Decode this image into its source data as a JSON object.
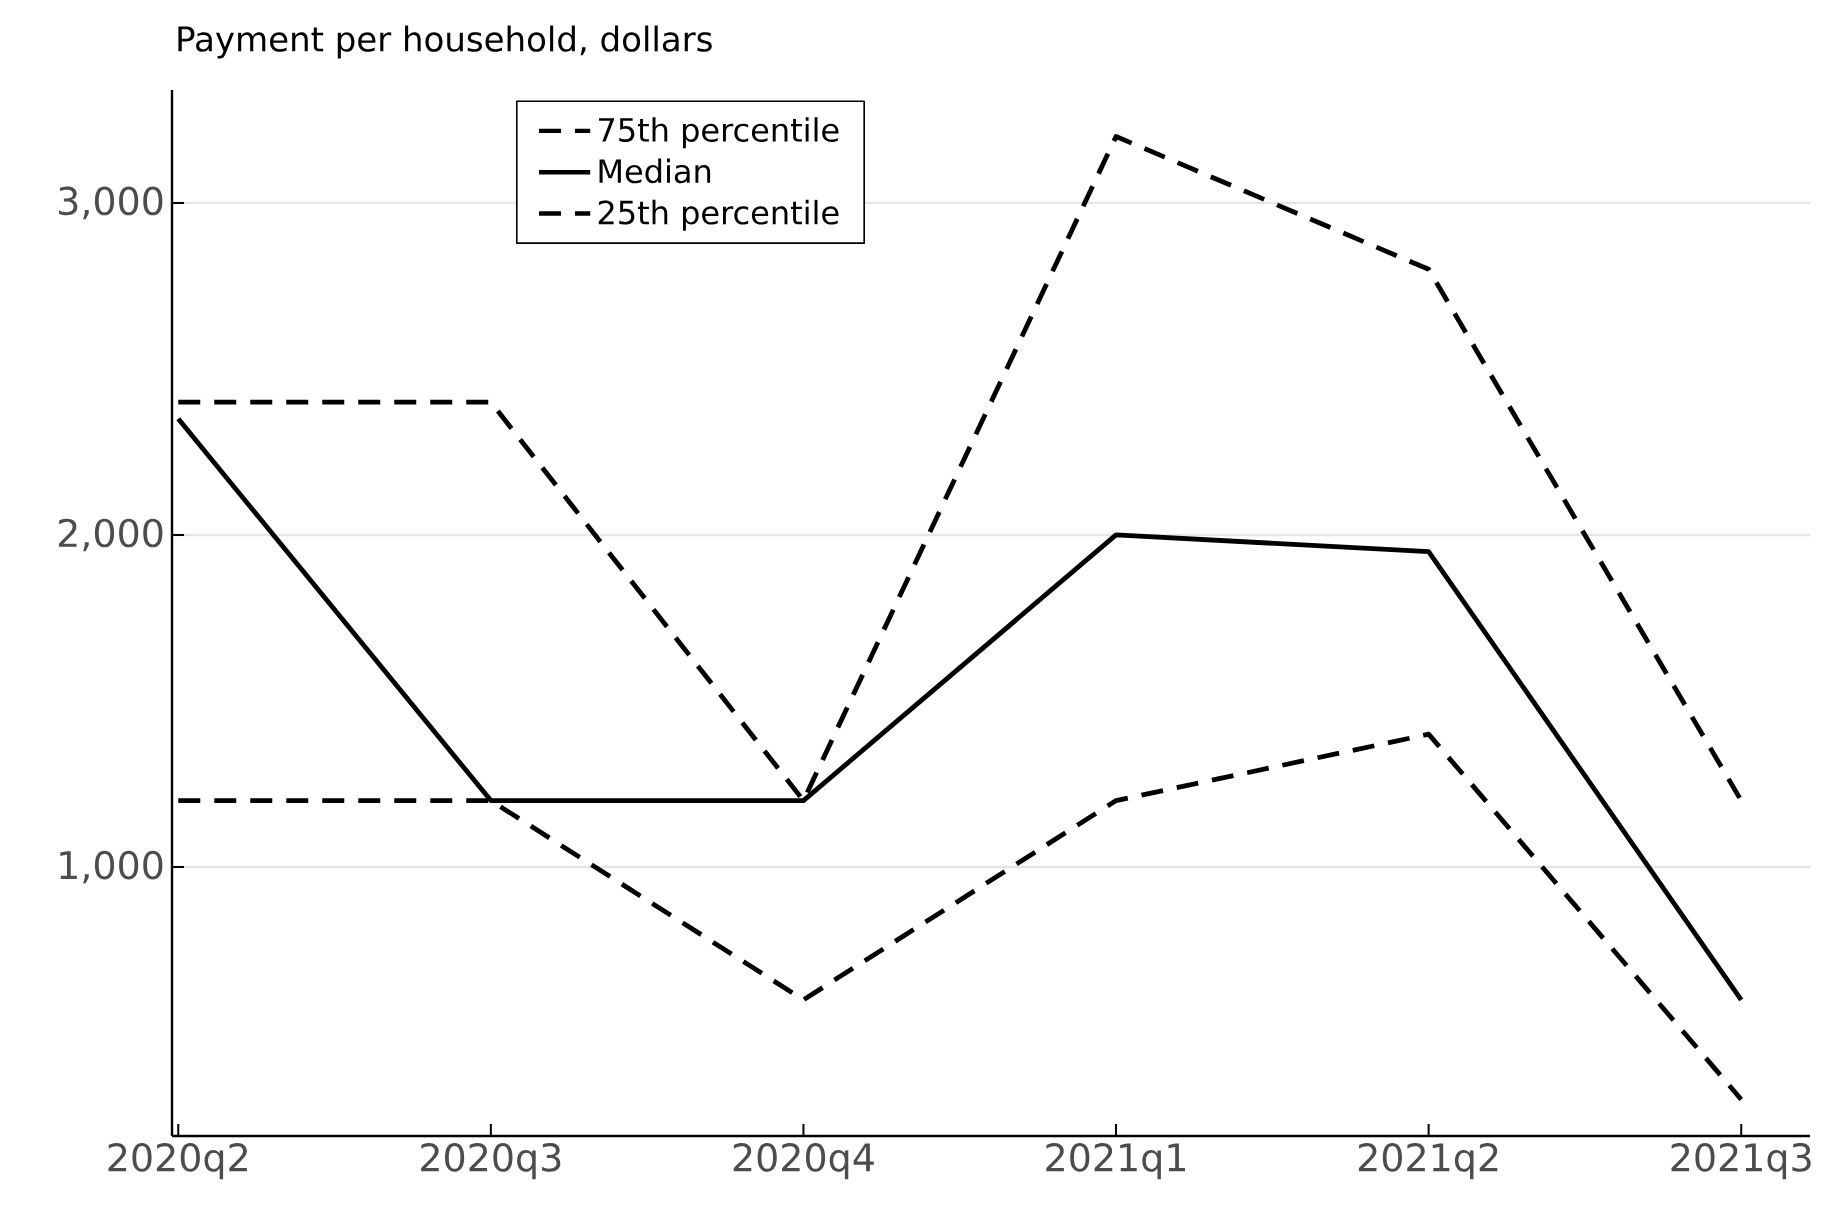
{
  "chart_data": {
    "type": "line",
    "title": "Payment per household, dollars",
    "categories": [
      "2020q2",
      "2020q3",
      "2020q4",
      "2021q1",
      "2021q2",
      "2021q3"
    ],
    "series": [
      {
        "name": "75th percentile",
        "color": "#000000",
        "line_style": "dashed",
        "values": [
          2400,
          2400,
          1200,
          3200,
          2800,
          1200
        ]
      },
      {
        "name": "Median",
        "color": "#000000",
        "line_style": "solid",
        "values": [
          2350,
          1200,
          1200,
          2000,
          1950,
          600
        ]
      },
      {
        "name": "25th percentile",
        "color": "#000000",
        "line_style": "dashed",
        "values": [
          1200,
          1200,
          600,
          1200,
          1400,
          300
        ]
      }
    ],
    "ylim": [
      190,
      3340
    ],
    "yticks": [
      {
        "value": 1000,
        "label": "1,000"
      },
      {
        "value": 2000,
        "label": "2,000"
      },
      {
        "value": 3000,
        "label": "3,000"
      }
    ],
    "grid": "y",
    "legend": "top left",
    "marker": "none"
  }
}
